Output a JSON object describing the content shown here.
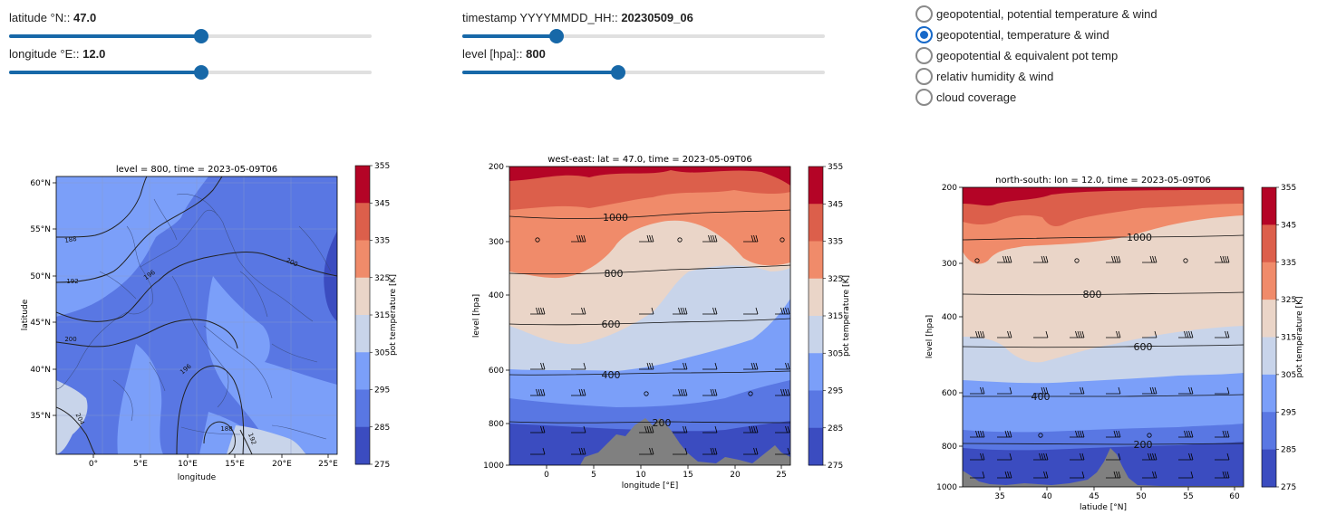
{
  "controls": {
    "sliders": [
      {
        "id": "lat",
        "label": "latitude °N::",
        "value": "47.0",
        "fraction": 0.53
      },
      {
        "id": "lon",
        "label": "longitude °E::",
        "value": "12.0",
        "fraction": 0.53
      },
      {
        "id": "ts",
        "label": "timestamp YYYYMMDD_HH::",
        "value": "20230509_06",
        "fraction": 0.26
      },
      {
        "id": "lev",
        "label": "level [hpa]::",
        "value": "800",
        "fraction": 0.43
      }
    ],
    "radio_options": [
      {
        "label": "geopotential, potential temperature & wind",
        "selected": false
      },
      {
        "label": "geopotential, temperature & wind",
        "selected": true
      },
      {
        "label": "geopotential & equivalent pot temp",
        "selected": false
      },
      {
        "label": "relativ humidity & wind",
        "selected": false
      },
      {
        "label": "cloud coverage",
        "selected": false
      }
    ]
  },
  "colors": {
    "accent": "#1768a8",
    "radio_selected": "#1769c9",
    "levels": [
      "#3b4cc0",
      "#5977e3",
      "#7b9ff9",
      "#c8d4ea",
      "#ead5c8",
      "#f08b6a",
      "#dc5f4b",
      "#b40426"
    ],
    "terrain": "#808080"
  },
  "chart_data": [
    {
      "type": "heatmap",
      "title": "level = 800, time = 2023-05-09T06",
      "xlabel": "longitude",
      "ylabel": "latitude",
      "xticks": [
        "0°",
        "5°E",
        "10°E",
        "15°E",
        "20°E",
        "25°E"
      ],
      "yticks": [
        "35°N",
        "40°N",
        "45°N",
        "50°N",
        "55°N",
        "60°N"
      ],
      "contour_labels": [
        "188",
        "192",
        "196",
        "200",
        "200",
        "204",
        "196",
        "188",
        "192",
        "200"
      ],
      "colorbar": {
        "label": "pot temperature [K]",
        "ticks": [
          "355",
          "345",
          "335",
          "325",
          "315",
          "305",
          "295",
          "285",
          "275"
        ]
      }
    },
    {
      "type": "heatmap",
      "title": "west-east: lat = 47.0, time = 2023-05-09T06",
      "xlabel": "longitude [°E]",
      "ylabel": "level [hpa]",
      "xticks": [
        "0",
        "5",
        "10",
        "15",
        "20",
        "25"
      ],
      "yticks": [
        "200",
        "300",
        "400",
        "600",
        "800",
        "1000"
      ],
      "contour_labels": [
        "1000",
        "800",
        "600",
        "400",
        "200"
      ],
      "colorbar": {
        "label": "pot temperature [K]",
        "ticks": [
          "355",
          "345",
          "335",
          "325",
          "315",
          "305",
          "295",
          "285",
          "275"
        ]
      }
    },
    {
      "type": "heatmap",
      "title": "north-south: lon = 12.0, time = 2023-05-09T06",
      "xlabel": "latiude [°N]",
      "ylabel": "level [hpa]",
      "xticks": [
        "35",
        "40",
        "45",
        "50",
        "55",
        "60"
      ],
      "yticks": [
        "200",
        "300",
        "400",
        "600",
        "800",
        "1000"
      ],
      "contour_labels": [
        "1000",
        "800",
        "600",
        "400",
        "200"
      ],
      "colorbar": {
        "label": "pot temperature [K]",
        "ticks": [
          "355",
          "345",
          "335",
          "325",
          "315",
          "305",
          "295",
          "285",
          "275"
        ]
      }
    }
  ]
}
